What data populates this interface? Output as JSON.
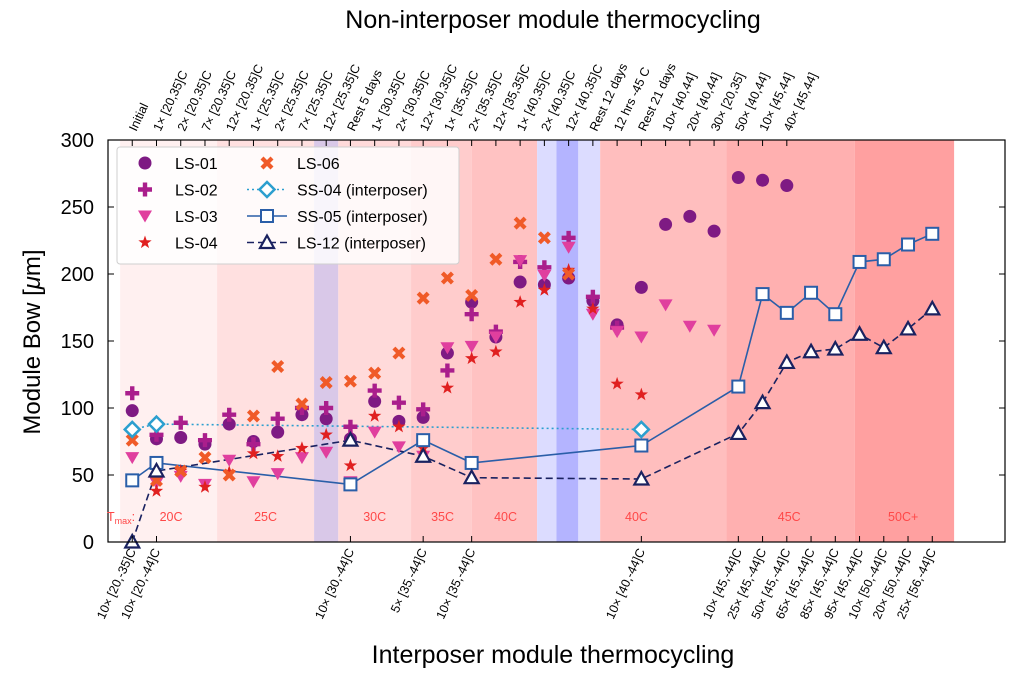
{
  "chart_data": {
    "type": "scatter",
    "title": "Non-interposer module thermocycling",
    "xlabel": "Interposer module thermocycling",
    "ylabel_main": "Module Bow [",
    "ylabel_mu": "μ",
    "ylabel_end": "m]",
    "ylim": [
      0,
      300
    ],
    "yticks": [
      0,
      50,
      100,
      150,
      200,
      250,
      300
    ],
    "xlim": [
      0,
      37
    ],
    "top_ticks": [
      {
        "x": 1,
        "label": "Initial"
      },
      {
        "x": 2,
        "label": "1× [20,35]C"
      },
      {
        "x": 3,
        "label": "2× [20,35]C"
      },
      {
        "x": 4,
        "label": "7× [20,35]C"
      },
      {
        "x": 5,
        "label": "12× [20,35]C"
      },
      {
        "x": 6,
        "label": "1× [25,35]C"
      },
      {
        "x": 7,
        "label": "2× [25,35]C"
      },
      {
        "x": 8,
        "label": "7× [25,35]C"
      },
      {
        "x": 9,
        "label": "12× [25,35]C"
      },
      {
        "x": 10,
        "label": "Rest 5 days"
      },
      {
        "x": 11,
        "label": "1× [30,35]C"
      },
      {
        "x": 12,
        "label": "2× [30,35]C"
      },
      {
        "x": 13,
        "label": "12× [30,35]C"
      },
      {
        "x": 14,
        "label": "1× [35,35]C"
      },
      {
        "x": 15,
        "label": "2× [35,35]C"
      },
      {
        "x": 16,
        "label": "12× [35,35]C"
      },
      {
        "x": 17,
        "label": "1× [40,35]C"
      },
      {
        "x": 18,
        "label": "2× [40,35]C"
      },
      {
        "x": 19,
        "label": "12× [40,35]C"
      },
      {
        "x": 20,
        "label": "Rest 12 days"
      },
      {
        "x": 21,
        "label": "12 hrs -45 C"
      },
      {
        "x": 22,
        "label": "Rest 21 days"
      },
      {
        "x": 23,
        "label": "10× [40,44]"
      },
      {
        "x": 24,
        "label": "20× [40,44]"
      },
      {
        "x": 25,
        "label": "30× [20,35]"
      },
      {
        "x": 26,
        "label": "50× [40,44]"
      },
      {
        "x": 27,
        "label": "10× [45,44]"
      },
      {
        "x": 28,
        "label": "40× [45,44]"
      }
    ],
    "bottom_ticks": [
      {
        "x": 1,
        "label": "10× [20,-35]C"
      },
      {
        "x": 2,
        "label": "10× [20,-44]C"
      },
      {
        "x": 10,
        "label": "10× [30,-44]C"
      },
      {
        "x": 13,
        "label": "5× [35,-44]C"
      },
      {
        "x": 15,
        "label": "10× [35,-44]C"
      },
      {
        "x": 22,
        "label": "10× [40,-44]C"
      },
      {
        "x": 26,
        "label": "10× [45,-44]C"
      },
      {
        "x": 27,
        "label": "25× [45,-44]C"
      },
      {
        "x": 28,
        "label": "50× [45,-44]C"
      },
      {
        "x": 29,
        "label": "65× [45,-44]C"
      },
      {
        "x": 30,
        "label": "85× [45,-44]C"
      },
      {
        "x": 31,
        "label": "95× [45,-44]C"
      },
      {
        "x": 32,
        "label": "10× [50,-44]C"
      },
      {
        "x": 33,
        "label": "20× [50,-44]C"
      },
      {
        "x": 34,
        "label": "25× [56,-44]C"
      }
    ],
    "bands": [
      {
        "x0": 0.5,
        "x1": 4.5,
        "color": "#fff0f0"
      },
      {
        "x0": 4.5,
        "x1": 8.5,
        "color": "#ffe0e0"
      },
      {
        "x0": 8.5,
        "x1": 9.5,
        "color": "#d9c8e8"
      },
      {
        "x0": 9.5,
        "x1": 12.5,
        "color": "#ffdada"
      },
      {
        "x0": 12.5,
        "x1": 15.0,
        "color": "#ffcccc"
      },
      {
        "x0": 15.0,
        "x1": 17.7,
        "color": "#ffc2c2"
      },
      {
        "x0": 17.7,
        "x1": 18.5,
        "color": "#dcdcff"
      },
      {
        "x0": 18.5,
        "x1": 19.4,
        "color": "#b4b4ff"
      },
      {
        "x0": 19.4,
        "x1": 20.3,
        "color": "#dcdcff"
      },
      {
        "x0": 20.3,
        "x1": 25.5,
        "color": "#ffbebe"
      },
      {
        "x0": 25.5,
        "x1": 30.8,
        "color": "#ffb0b0"
      },
      {
        "x0": 30.8,
        "x1": 34.9,
        "color": "#ffa0a0"
      }
    ],
    "band_labels": [
      {
        "x": 2.6,
        "label": "20C"
      },
      {
        "x": 6.5,
        "label": "25C"
      },
      {
        "x": 11.0,
        "label": "30C"
      },
      {
        "x": 13.8,
        "label": "35C"
      },
      {
        "x": 16.4,
        "label": "40C"
      },
      {
        "x": 21.8,
        "label": "40C"
      },
      {
        "x": 28.1,
        "label": "45C"
      },
      {
        "x": 32.8,
        "label": "50C+"
      }
    ],
    "tmax": {
      "main": "T",
      "sub": "max",
      "suffix": ":"
    },
    "series": [
      {
        "name": "LS-01",
        "marker": "circle",
        "color": "#7e1a83",
        "line": "none",
        "points": [
          [
            1,
            98
          ],
          [
            2,
            77
          ],
          [
            3,
            78
          ],
          [
            4,
            73
          ],
          [
            5,
            88
          ],
          [
            6,
            75
          ],
          [
            7,
            82
          ],
          [
            8,
            95
          ],
          [
            9,
            92
          ],
          [
            10,
            77
          ],
          [
            11,
            105
          ],
          [
            12,
            90
          ],
          [
            13,
            93
          ],
          [
            14,
            141
          ],
          [
            15,
            179
          ],
          [
            16,
            153
          ],
          [
            17,
            194
          ],
          [
            18,
            192
          ],
          [
            19,
            197
          ],
          [
            20,
            180
          ],
          [
            21,
            162
          ],
          [
            22,
            190
          ],
          [
            23,
            237
          ],
          [
            24,
            243
          ],
          [
            25,
            232
          ],
          [
            26,
            272
          ],
          [
            27,
            270
          ],
          [
            28,
            266
          ]
        ]
      },
      {
        "name": "LS-02",
        "marker": "plus",
        "color": "#aa1e8c",
        "line": "none",
        "points": [
          [
            1,
            111
          ],
          [
            2,
            80
          ],
          [
            3,
            89
          ],
          [
            4,
            76
          ],
          [
            5,
            95
          ],
          [
            6,
            73
          ],
          [
            7,
            92
          ],
          [
            8,
            100
          ],
          [
            9,
            100
          ],
          [
            10,
            86
          ],
          [
            11,
            113
          ],
          [
            12,
            104
          ],
          [
            13,
            99
          ],
          [
            14,
            128
          ],
          [
            15,
            170
          ],
          [
            16,
            157
          ],
          [
            17,
            209
          ],
          [
            18,
            205
          ],
          [
            19,
            227
          ],
          [
            20,
            183
          ],
          [
            21,
            160
          ]
        ]
      },
      {
        "name": "LS-03",
        "marker": "tri-down",
        "color": "#e03f9e",
        "line": "none",
        "points": [
          [
            1,
            63
          ],
          [
            2,
            44
          ],
          [
            3,
            49
          ],
          [
            4,
            43
          ],
          [
            5,
            61
          ],
          [
            6,
            45
          ],
          [
            7,
            51
          ],
          [
            8,
            63
          ],
          [
            9,
            67
          ],
          [
            10,
            45
          ],
          [
            11,
            82
          ],
          [
            12,
            71
          ],
          [
            13,
            64
          ],
          [
            14,
            145
          ],
          [
            15,
            146
          ],
          [
            16,
            153
          ],
          [
            17,
            210
          ],
          [
            18,
            199
          ],
          [
            19,
            220
          ],
          [
            20,
            170
          ],
          [
            21,
            157
          ],
          [
            22,
            153
          ],
          [
            23,
            177
          ],
          [
            24,
            161
          ],
          [
            25,
            158
          ]
        ]
      },
      {
        "name": "LS-04",
        "marker": "star",
        "color": "#e02020",
        "line": "none",
        "points": [
          [
            1,
            77
          ],
          [
            2,
            38
          ],
          [
            3,
            53
          ],
          [
            4,
            41
          ],
          [
            5,
            52
          ],
          [
            6,
            66
          ],
          [
            7,
            64
          ],
          [
            8,
            70
          ],
          [
            9,
            80
          ],
          [
            10,
            57
          ],
          [
            11,
            94
          ],
          [
            12,
            86
          ],
          [
            13,
            70
          ],
          [
            14,
            115
          ],
          [
            15,
            137
          ],
          [
            16,
            142
          ],
          [
            17,
            179
          ],
          [
            18,
            188
          ],
          [
            19,
            203
          ],
          [
            20,
            174
          ],
          [
            21,
            118
          ],
          [
            22,
            110
          ]
        ]
      },
      {
        "name": "LS-06",
        "marker": "x",
        "color": "#f05a28",
        "line": "none",
        "points": [
          [
            1,
            76
          ],
          [
            2,
            46
          ],
          [
            3,
            53
          ],
          [
            4,
            63
          ],
          [
            5,
            50
          ],
          [
            6,
            94
          ],
          [
            7,
            131
          ],
          [
            8,
            103
          ],
          [
            9,
            119
          ],
          [
            10,
            120
          ],
          [
            11,
            126
          ],
          [
            12,
            141
          ],
          [
            13,
            182
          ],
          [
            14,
            197
          ],
          [
            15,
            184
          ],
          [
            16,
            211
          ],
          [
            17,
            238
          ],
          [
            18,
            227
          ],
          [
            19,
            200
          ]
        ]
      },
      {
        "name": "SS-04 (interposer)",
        "marker": "diamond",
        "color": "#2c9fcf",
        "line": "dotted",
        "points": [
          [
            1,
            84
          ],
          [
            2,
            88
          ],
          [
            22,
            84
          ]
        ]
      },
      {
        "name": "SS-05 (interposer)",
        "marker": "square",
        "color": "#2a5ea8",
        "line": "solid",
        "points": [
          [
            1,
            46
          ],
          [
            2,
            59
          ],
          [
            10,
            43
          ],
          [
            13,
            76
          ],
          [
            15,
            59
          ],
          [
            22,
            72
          ],
          [
            26,
            116
          ],
          [
            27,
            185
          ],
          [
            28,
            171
          ],
          [
            29,
            186
          ],
          [
            30,
            170
          ],
          [
            31,
            209
          ],
          [
            32,
            211
          ],
          [
            33,
            222
          ],
          [
            34,
            230
          ]
        ]
      },
      {
        "name": "LS-12 (interposer)",
        "marker": "triangle",
        "color": "#1a2260",
        "line": "dashed",
        "points": [
          [
            1,
            0
          ],
          [
            2,
            53
          ],
          [
            10,
            76
          ],
          [
            13,
            64
          ],
          [
            15,
            48
          ],
          [
            22,
            47
          ],
          [
            26,
            81
          ],
          [
            27,
            104
          ],
          [
            28,
            134
          ],
          [
            29,
            142
          ],
          [
            30,
            144
          ],
          [
            31,
            155
          ],
          [
            32,
            145
          ],
          [
            33,
            159
          ],
          [
            34,
            174
          ]
        ]
      }
    ],
    "legend": {
      "placement": "top-left"
    }
  }
}
